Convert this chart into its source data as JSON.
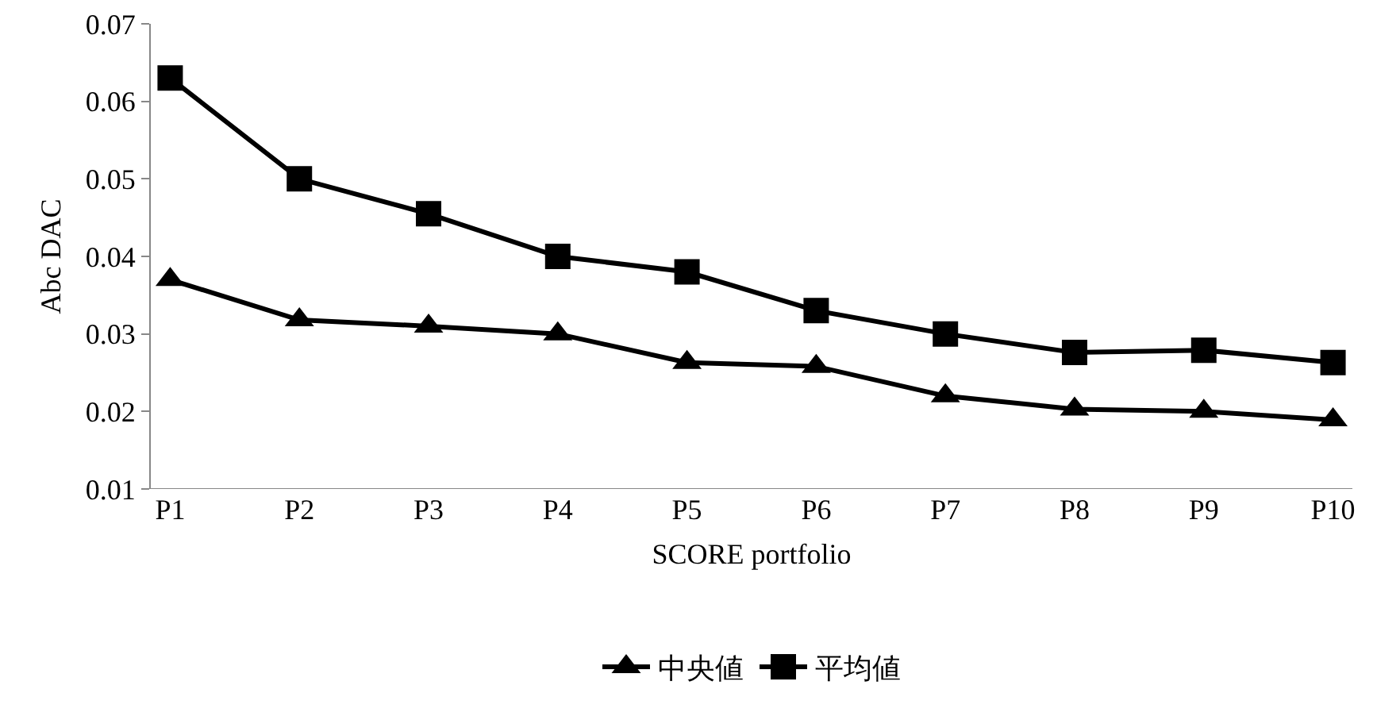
{
  "chart_data": {
    "type": "line",
    "xlabel": "SCORE portfolio",
    "ylabel": "Abc DAC",
    "categories": [
      "P1",
      "P2",
      "P3",
      "P4",
      "P5",
      "P6",
      "P7",
      "P8",
      "P9",
      "P10"
    ],
    "series": [
      {
        "name": "中央値",
        "color": "#000000",
        "marker": "triangle",
        "values": [
          0.037,
          0.0318,
          0.031,
          0.03,
          0.0263,
          0.0258,
          0.022,
          0.0203,
          0.02,
          0.0189
        ]
      },
      {
        "name": "平均値",
        "color": "#000000",
        "marker": "square",
        "values": [
          0.063,
          0.05,
          0.0455,
          0.04,
          0.038,
          0.033,
          0.03,
          0.0276,
          0.0279,
          0.0263
        ]
      }
    ],
    "ylim": [
      0.01,
      0.07
    ],
    "yticks": [
      0.01,
      0.02,
      0.03,
      0.04,
      0.05,
      0.06,
      0.07
    ],
    "grid": false,
    "legend": "bottom",
    "line_style": "solid"
  }
}
